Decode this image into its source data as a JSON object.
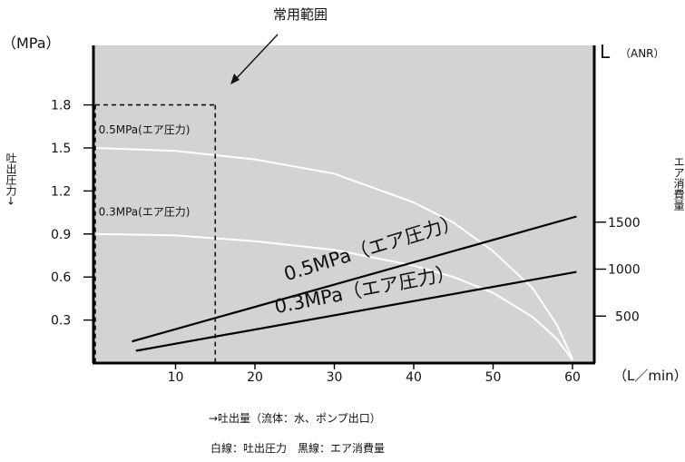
{
  "chart_data": {
    "type": "line",
    "title": "",
    "annotation": "常用範囲",
    "xlabel": "→吐出量（流体：水、ポンプ出口）",
    "x_unit": "（L／min）",
    "xlim": [
      0,
      61
    ],
    "x_ticks": [
      "10",
      "20",
      "30",
      "40",
      "50",
      "60"
    ],
    "y_left": {
      "unit": "（MPa）",
      "label": "吐出圧力→",
      "ylim": [
        0,
        2.0
      ],
      "ticks": [
        "0.3",
        "0.6",
        "0.9",
        "1.2",
        "1.5",
        "1.8"
      ]
    },
    "y_right": {
      "unit_letter": "L",
      "unit_detail": "（ANR）",
      "label": "エア消費量",
      "ylim": [
        0,
        2040
      ],
      "ticks": [
        "500",
        "1000",
        "1500"
      ]
    },
    "legend_note": "白線：吐出圧力　黒線：エア消費量",
    "plot_background": "#d3d3d3",
    "common_range": {
      "x_max": 15,
      "y_max": 1.8
    },
    "series": [
      {
        "name": "0.5MPa(エア圧力)",
        "kind": "pressure",
        "axis": "left",
        "color": "#ffffff",
        "label_at": [
          0.3,
          1.6
        ],
        "x": [
          0,
          10,
          20,
          30,
          40,
          45,
          50,
          55,
          58,
          60
        ],
        "y": [
          1.5,
          1.48,
          1.42,
          1.32,
          1.12,
          0.98,
          0.78,
          0.52,
          0.27,
          0.03
        ]
      },
      {
        "name": "0.3MPa(エア圧力)",
        "kind": "pressure",
        "axis": "left",
        "color": "#ffffff",
        "label_at": [
          0.3,
          1.03
        ],
        "x": [
          0,
          10,
          20,
          30,
          40,
          45,
          50,
          55,
          58,
          60
        ],
        "y": [
          0.9,
          0.89,
          0.85,
          0.79,
          0.68,
          0.6,
          0.49,
          0.32,
          0.17,
          0.02
        ]
      },
      {
        "name": "0.5MPa（エア圧力）",
        "kind": "air",
        "axis": "right",
        "color": "#000000",
        "label_at": [
          35.0,
          1160
        ],
        "label_angle": -17,
        "label_size": 21,
        "x": [
          4.5,
          60.5
        ],
        "y": [
          230,
          1560
        ]
      },
      {
        "name": "0.3MPa（エア圧力）",
        "kind": "air",
        "axis": "right",
        "color": "#000000",
        "label_at": [
          34.0,
          715
        ],
        "label_angle": -11,
        "label_size": 21,
        "x": [
          5.0,
          60.5
        ],
        "y": [
          130,
          970
        ]
      }
    ]
  }
}
